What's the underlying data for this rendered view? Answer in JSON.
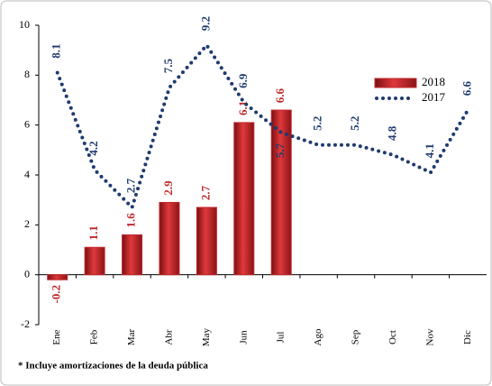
{
  "chart_data": {
    "type": "bar",
    "categories": [
      "Ene",
      "Feb",
      "Mar",
      "Abr",
      "May",
      "Jun",
      "Jul",
      "Ago",
      "Sep",
      "Oct",
      "Nov",
      "Dic"
    ],
    "series": [
      {
        "name": "2018",
        "type": "bar",
        "color": "#c0282a",
        "values": [
          -0.2,
          1.1,
          1.6,
          2.9,
          2.7,
          6.1,
          6.6,
          null,
          null,
          null,
          null,
          null
        ]
      },
      {
        "name": "2017",
        "type": "line",
        "color": "#1f3a6e",
        "values": [
          8.1,
          4.2,
          2.7,
          7.5,
          9.2,
          6.9,
          5.7,
          5.2,
          5.2,
          4.8,
          4.1,
          6.6
        ]
      }
    ],
    "ylim": [
      -2,
      10
    ],
    "yticks": [
      -2,
      0,
      2,
      4,
      6,
      8,
      10
    ],
    "footnote": "* Incluye amortizaciones de la deuda pública"
  }
}
